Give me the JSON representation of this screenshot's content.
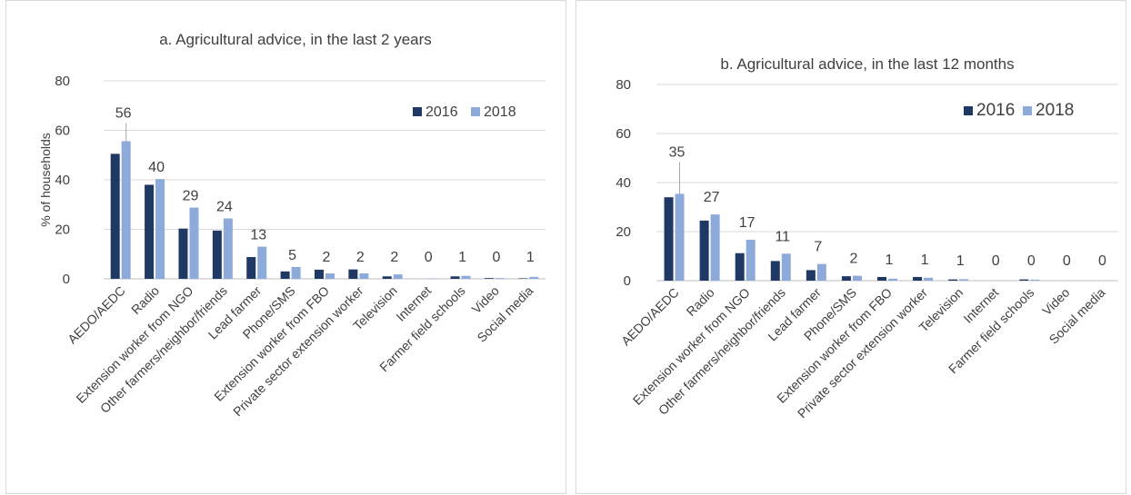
{
  "colors": {
    "s2016": "#1f3864",
    "s2018": "#8eaadb",
    "grid": "#d9d9d9",
    "text": "#404040"
  },
  "chart_data": [
    {
      "type": "bar",
      "title": "a. Agricultural advice, in the last 2 years",
      "ylabel": "% of households",
      "xlabel": "",
      "ylim": [
        0,
        80
      ],
      "yticks": [
        "0",
        "20",
        "40",
        "60",
        "80"
      ],
      "legend_position": "top-right",
      "categories": [
        "AEDO/AEDC",
        "Radio",
        "Extension worker from NGO",
        "Other farmers/neighbor/friends",
        "Lead farmer",
        "Phone/SMS",
        "Extension worker from FBO",
        "Private sector extension worker",
        "Television",
        "Internet",
        "Farmer field schools",
        "Video",
        "Social media"
      ],
      "series": [
        {
          "name": "2016",
          "values": [
            50.5,
            38,
            20.3,
            19.5,
            8.8,
            3,
            3.7,
            3.8,
            1,
            0,
            1,
            0.3,
            0.2
          ]
        },
        {
          "name": "2018",
          "values": [
            55.6,
            40.3,
            28.8,
            24.4,
            13,
            4.8,
            2.2,
            2.2,
            1.8,
            0.2,
            1.2,
            0.3,
            0.8
          ]
        }
      ],
      "data_labels": [
        "56",
        "40",
        "29",
        "24",
        "13",
        "5",
        "2",
        "2",
        "2",
        "0",
        "1",
        "0",
        "1"
      ]
    },
    {
      "type": "bar",
      "title": "b. Agricultural advice, in the last 12 months",
      "ylabel": "",
      "xlabel": "",
      "ylim": [
        0,
        80
      ],
      "yticks": [
        "0",
        "20",
        "40",
        "60",
        "80"
      ],
      "legend_position": "top-right",
      "categories": [
        "AEDO/AEDC",
        "Radio",
        "Extension worker from NGO",
        "Other farmers/neighbor/friends",
        "Lead farmer",
        "Phone/SMS",
        "Extension worker from FBO",
        "Private sector extension worker",
        "Television",
        "Internet",
        "Farmer field schools",
        "Video",
        "Social media"
      ],
      "series": [
        {
          "name": "2016",
          "values": [
            34,
            24.5,
            11.2,
            8,
            4.3,
            1.8,
            1.5,
            1.5,
            0.5,
            0,
            0.5,
            0,
            0
          ]
        },
        {
          "name": "2018",
          "values": [
            35.4,
            27,
            16.7,
            11,
            6.8,
            2,
            0.8,
            1.2,
            0.6,
            0.1,
            0.4,
            0.1,
            0.1
          ]
        }
      ],
      "data_labels": [
        "35",
        "27",
        "17",
        "11",
        "7",
        "2",
        "1",
        "1",
        "1",
        "0",
        "0",
        "0",
        "0"
      ]
    }
  ]
}
